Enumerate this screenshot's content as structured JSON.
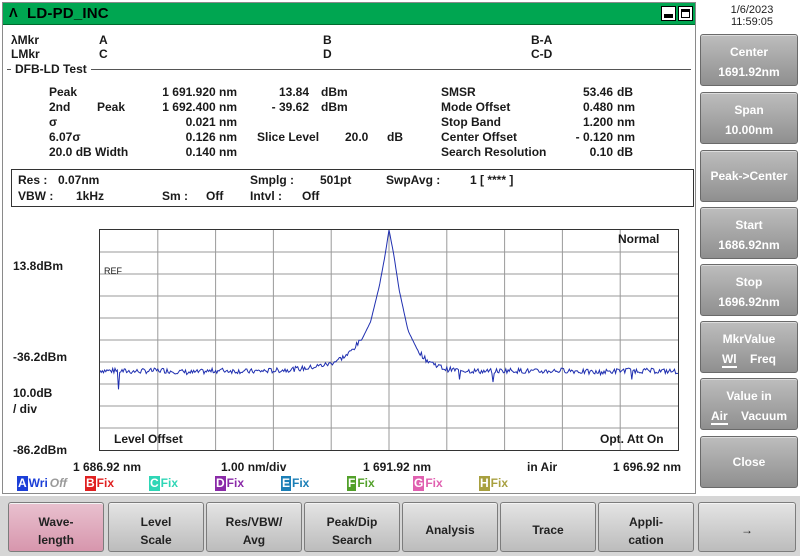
{
  "window": {
    "title": "LD-PD_INC",
    "icon": "lambda-logo-icon"
  },
  "datetime": {
    "date": "1/6/2023",
    "time": "11:59:05"
  },
  "markers": {
    "lambda_mkr": "λMkr",
    "l_mkr": "LMkr",
    "a": "A",
    "b": "B",
    "c": "C",
    "d": "D",
    "b_a": "B-A",
    "c_d": "C-D"
  },
  "test_name": "DFB-LD Test",
  "results_left": [
    {
      "label": "Peak",
      "sub": "",
      "value": "1 691.920 nm"
    },
    {
      "label": "2nd",
      "sub": "Peak",
      "value": "1 692.400 nm"
    },
    {
      "label": "σ",
      "sub": "",
      "value": "0.021 nm"
    },
    {
      "label": "6.07σ",
      "sub": "",
      "value": "0.126 nm"
    },
    {
      "label": "20.0  dB Width",
      "sub": "",
      "value": "0.140 nm"
    }
  ],
  "results_mid": {
    "peak_level": "13.84",
    "peak_unit": "dBm",
    "second_level": "-  39.62",
    "second_unit": "dBm",
    "slice_label": "Slice Level",
    "slice_value": "20.0",
    "slice_unit": "dB"
  },
  "results_right": [
    {
      "label": "SMSR",
      "value": "53.46",
      "unit": "dB"
    },
    {
      "label": "Mode Offset",
      "value": "0.480",
      "unit": "nm"
    },
    {
      "label": "Stop Band",
      "value": "1.200",
      "unit": "nm"
    },
    {
      "label": "Center Offset",
      "value": "-  0.120",
      "unit": "nm"
    },
    {
      "label": "Search Resolution",
      "value": "0.10",
      "unit": "dB"
    }
  ],
  "params": {
    "res_label": "Res :",
    "res_value": "0.07nm",
    "vbw_label": "VBW :",
    "vbw_value": "1kHz",
    "sm_label": "Sm :",
    "sm_value": "Off",
    "smplg_label": "Smplg :",
    "smplg_value": "501pt",
    "intvl_label": "Intvl :",
    "intvl_value": "Off",
    "swpavg_label": "SwpAvg :",
    "swpavg_value": "1 [     ****  ]"
  },
  "chart_data": {
    "type": "line",
    "mode_label": "Normal",
    "ref_label": "REF",
    "y_ticks": [
      "13.8dBm",
      "-36.2dBm",
      "-86.2dBm"
    ],
    "y_scale_value": "10.0dB",
    "y_scale_unit": "/ div",
    "x_ticks": [
      "1 686.92 nm",
      "1.00 nm/div",
      "1 691.92 nm",
      "in Air",
      "1 696.92 nm"
    ],
    "level_offset_label": "Level Offset",
    "opt_att_label": "Opt. Att On",
    "xlim": [
      1686.92,
      1696.92
    ],
    "ylim": [
      -86.2,
      13.8
    ],
    "grid": true,
    "x": [
      1686.92,
      1687.5,
      1688.0,
      1688.5,
      1689.0,
      1689.5,
      1690.0,
      1690.5,
      1690.9,
      1691.2,
      1691.45,
      1691.6,
      1691.75,
      1691.85,
      1691.92,
      1692.0,
      1692.1,
      1692.25,
      1692.4,
      1692.55,
      1692.7,
      1692.9,
      1693.2,
      1693.6,
      1694.0,
      1694.5,
      1695.0,
      1695.5,
      1696.0,
      1696.92
    ],
    "y": [
      -50.0,
      -50.5,
      -50.0,
      -51.0,
      -50.0,
      -50.5,
      -50.0,
      -49.0,
      -47.0,
      -43.0,
      -36.0,
      -28.0,
      -12.0,
      2.0,
      13.8,
      3.0,
      -14.0,
      -32.0,
      -40.0,
      -45.0,
      -47.0,
      -49.5,
      -50.0,
      -50.5,
      -50.0,
      -50.5,
      -50.0,
      -51.0,
      -50.0,
      -50.5
    ]
  },
  "traces": [
    {
      "letter": "A",
      "state": "Wri",
      "extra": "Off",
      "color": "#1c3fd8"
    },
    {
      "letter": "B",
      "state": "Fix",
      "extra": "",
      "color": "#e02020"
    },
    {
      "letter": "C",
      "state": "Fix",
      "extra": "",
      "color": "#2fd6b6"
    },
    {
      "letter": "D",
      "state": "Fix",
      "extra": "",
      "color": "#8a2aa8"
    },
    {
      "letter": "E",
      "state": "Fix",
      "extra": "",
      "color": "#1b7fb7"
    },
    {
      "letter": "F",
      "state": "Fix",
      "extra": "",
      "color": "#52a02a"
    },
    {
      "letter": "G",
      "state": "Fix",
      "extra": "",
      "color": "#e060b0"
    },
    {
      "letter": "H",
      "state": "Fix",
      "extra": "",
      "color": "#a8a040"
    }
  ],
  "softkeys": [
    {
      "line1": "Center",
      "line2": "1691.92nm"
    },
    {
      "line1": "Span",
      "line2": "10.00nm"
    },
    {
      "line1": "Peak->Center",
      "line2": ""
    },
    {
      "line1": "Start",
      "line2": "1686.92nm"
    },
    {
      "line1": "Stop",
      "line2": "1696.92nm"
    },
    {
      "line1": "MkrValue",
      "opt1": "Wl",
      "opt2": "Freq"
    },
    {
      "line1": "Value in",
      "opt1": "Air",
      "opt2": "Vacuum"
    },
    {
      "line1": "Close",
      "line2": ""
    }
  ],
  "fkeys": [
    {
      "line1": "Wave-",
      "line2": "length"
    },
    {
      "line1": "Level",
      "line2": "Scale"
    },
    {
      "line1": "Res/VBW/",
      "line2": "Avg"
    },
    {
      "line1": "Peak/Dip",
      "line2": "Search"
    },
    {
      "line1": "Analysis",
      "line2": ""
    },
    {
      "line1": "Trace",
      "line2": ""
    },
    {
      "line1": "Appli-",
      "line2": "cation"
    },
    {
      "line1": "→",
      "line2": ""
    }
  ],
  "colors": {
    "title_bar": "#00a651",
    "trace": "#1f2fb0",
    "active_key": "#d796ad"
  }
}
